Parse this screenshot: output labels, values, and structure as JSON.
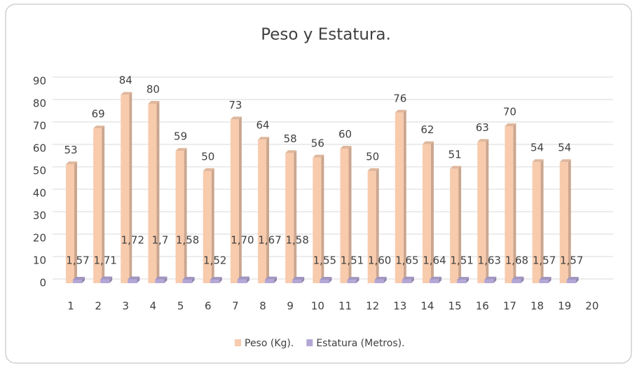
{
  "chart_data": {
    "type": "bar",
    "title": "Peso y Estatura.",
    "categories": [
      "1",
      "2",
      "3",
      "4",
      "5",
      "6",
      "7",
      "8",
      "9",
      "10",
      "11",
      "12",
      "13",
      "14",
      "15",
      "16",
      "17",
      "18",
      "19",
      "20"
    ],
    "series": [
      {
        "name": "Peso (Kg).",
        "color": "#f8cbad",
        "values": [
          53,
          69,
          84,
          80,
          59,
          50,
          73,
          64,
          58,
          56,
          60,
          50,
          76,
          62,
          51,
          63,
          70,
          54,
          54,
          null
        ]
      },
      {
        "name": "Estatura (Metros).",
        "color": "#b4a7d6",
        "values": [
          1.57,
          1.71,
          1.72,
          1.7,
          1.58,
          1.52,
          1.7,
          1.67,
          1.58,
          1.55,
          1.51,
          1.6,
          1.65,
          1.64,
          1.51,
          1.63,
          1.68,
          1.57,
          1.57,
          null
        ],
        "value_labels": [
          "1,57",
          "1,71",
          "1,72",
          "1,7",
          "1,58",
          "1,52",
          "1,70",
          "1,67",
          "1,58",
          "1,55",
          "1,51",
          "1,60",
          "1,65",
          "1,64",
          "1,51",
          "1,63",
          "1,68",
          "1,57",
          "1,57",
          null
        ]
      }
    ],
    "ylim": [
      0,
      90
    ],
    "yticks": [
      0,
      10,
      20,
      30,
      40,
      50,
      60,
      70,
      80,
      90
    ],
    "grid": true,
    "legend": "bottom"
  }
}
